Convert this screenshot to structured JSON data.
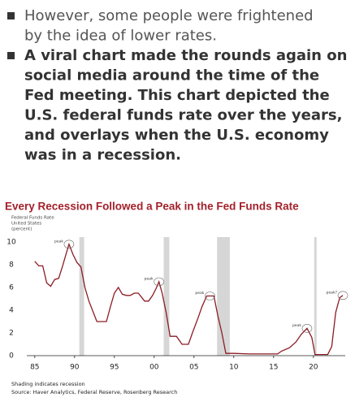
{
  "bullets": [
    [
      "However, some people were frightened",
      "by the idea of lower rates."
    ],
    [
      "A viral chart made the rounds again on",
      "social media around the time of the",
      "Fed meeting. This chart depicted the",
      "U.S. federal funds rate over the years,",
      "and overlays when the U.S. economy",
      "was in a recession."
    ]
  ],
  "chart_data": {
    "type": "line",
    "title": "Every Recession Followed a Peak in the Fed Funds Rate",
    "subtitle": [
      "Federal Funds Rate",
      "United States",
      "(percent)"
    ],
    "x": [
      1985,
      1985.5,
      1986,
      1986.5,
      1987,
      1987.5,
      1988,
      1988.5,
      1989,
      1989.3,
      1989.8,
      1990.3,
      1990.8,
      1991.3,
      1991.8,
      1992.3,
      1992.8,
      1993.5,
      1994,
      1994.5,
      1995,
      1995.5,
      1996,
      1996.5,
      1997,
      1997.5,
      1998,
      1998.8,
      1999.3,
      1999.8,
      2000.3,
      2000.6,
      2001,
      2001.5,
      2002,
      2002.8,
      2003.5,
      2004.3,
      2004.8,
      2005.5,
      2006,
      2006.6,
      2007.5,
      2008,
      2008.5,
      2009,
      2010,
      2012,
      2015.5,
      2016,
      2017,
      2017.8,
      2018.5,
      2019.2,
      2019.8,
      2020.2,
      2021.8,
      2022.3,
      2022.8,
      2023.3,
      2023.7
    ],
    "values": [
      8.3,
      7.9,
      7.9,
      6.4,
      6.1,
      6.7,
      6.8,
      7.9,
      9.1,
      9.8,
      8.9,
      8.2,
      7.8,
      6,
      4.8,
      3.9,
      3,
      3,
      3,
      4.3,
      5.5,
      6,
      5.4,
      5.3,
      5.3,
      5.5,
      5.5,
      4.8,
      4.8,
      5.3,
      6,
      6.5,
      5.5,
      3.8,
      1.7,
      1.7,
      1,
      1,
      2,
      3.3,
      4.3,
      5.25,
      5.25,
      3.5,
      2,
      0.2,
      0.2,
      0.15,
      0.15,
      0.4,
      0.7,
      1.2,
      1.9,
      2.4,
      1.6,
      0.1,
      0.1,
      0.8,
      3.8,
      5.1,
      5.3
    ],
    "color": "#8b1c24",
    "recessions": [
      [
        1990.6,
        1991.2
      ],
      [
        2001.2,
        2001.9
      ],
      [
        2007.9,
        2009.5
      ],
      [
        2020.1,
        2020.4
      ]
    ],
    "recession_color": "#d6d6d6",
    "annotations": [
      {
        "text": "peak",
        "x": 1989.3,
        "y": 9.8
      },
      {
        "text": "peak",
        "x": 2000.6,
        "y": 6.5
      },
      {
        "text": "peak",
        "x": 2007,
        "y": 5.25
      },
      {
        "text": "peak",
        "x": 2019.2,
        "y": 2.4
      },
      {
        "text": "peak?",
        "x": 2023.7,
        "y": 5.3
      }
    ],
    "xlim": [
      1984,
      2024
    ],
    "xticks": [
      {
        "value": 1985,
        "label": "85"
      },
      {
        "value": 1990,
        "label": "90"
      },
      {
        "value": 1995,
        "label": "95"
      },
      {
        "value": 2000,
        "label": "00"
      },
      {
        "value": 2005,
        "label": "05"
      },
      {
        "value": 2010,
        "label": "10"
      },
      {
        "value": 2015,
        "label": "15"
      },
      {
        "value": 2020,
        "label": "20"
      }
    ],
    "ylim": [
      0,
      10
    ],
    "yticks": [
      0,
      2,
      4,
      6,
      8,
      10
    ],
    "grid": false,
    "notes": [
      "Shading indicates recession",
      "Source: Haver Analytics, Federal Reserve, Rosenberg Research"
    ]
  }
}
